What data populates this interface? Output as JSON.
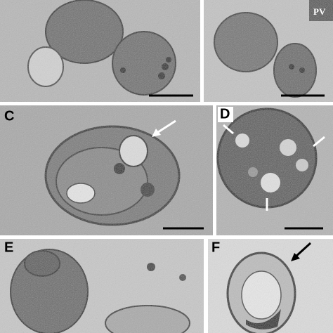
{
  "panel_b_annotation": "PV",
  "panel_labels": [
    "C",
    "D",
    "E",
    "F"
  ]
}
